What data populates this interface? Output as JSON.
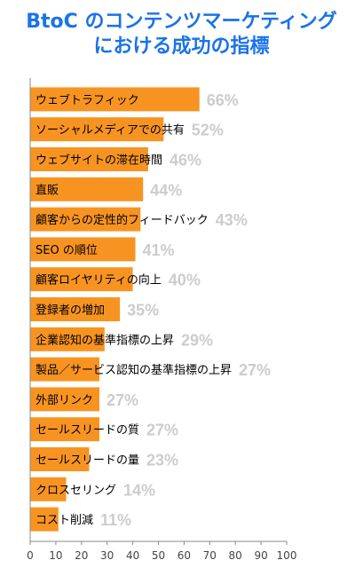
{
  "title_lines": [
    "BtoC のコンテンツマーケティング",
    "における成功の指標"
  ],
  "colors": {
    "bar": "#f79421",
    "value": "#cccccc",
    "title": "#1a73e8",
    "axis": "#888888"
  },
  "chart_data": {
    "type": "bar",
    "orientation": "horizontal",
    "categories": [
      "ウェブトラフィック",
      "ソーシャルメディアでの共有",
      "ウェブサイトの滞在時間",
      "直販",
      "顧客からの定性的フィードバック",
      "SEO の順位",
      "顧客ロイヤリティの向上",
      "登録者の増加",
      "企業認知の基準指標の上昇",
      "製品／サービス認知の基準指標の上昇",
      "外部リンク",
      "セールスリードの質",
      "セールスリードの量",
      "クロスセリング",
      "コスト削減"
    ],
    "values": [
      66,
      52,
      46,
      44,
      43,
      41,
      40,
      35,
      29,
      27,
      27,
      27,
      23,
      14,
      11
    ],
    "value_labels": [
      "66%",
      "52%",
      "46%",
      "44%",
      "43%",
      "41%",
      "40%",
      "35%",
      "29%",
      "27%",
      "27%",
      "27%",
      "23%",
      "14%",
      "11%"
    ],
    "xlim": [
      0,
      100
    ],
    "xticks": [
      0,
      10,
      20,
      30,
      40,
      50,
      60,
      70,
      80,
      90,
      100
    ],
    "grid": false,
    "legend": "none"
  }
}
